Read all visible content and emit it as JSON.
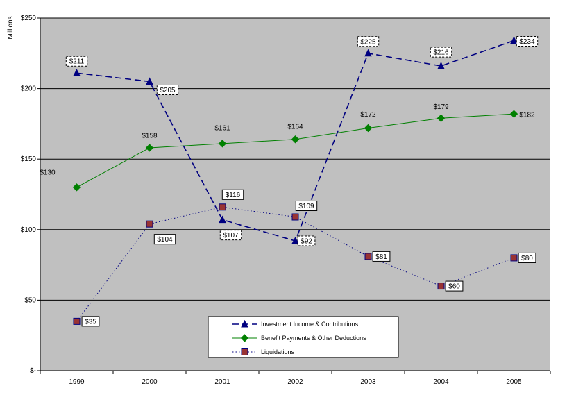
{
  "chart_data": {
    "type": "line",
    "ylabel": "Millions",
    "ylim": [
      0,
      250
    ],
    "yticks": [
      {
        "value": 0,
        "label": "$-"
      },
      {
        "value": 50,
        "label": "$50"
      },
      {
        "value": 100,
        "label": "$100"
      },
      {
        "value": 150,
        "label": "$150"
      },
      {
        "value": 200,
        "label": "$200"
      },
      {
        "value": 250,
        "label": "$250"
      }
    ],
    "categories": [
      "1999",
      "2000",
      "2001",
      "2002",
      "2003",
      "2004",
      "2005"
    ],
    "grid": true,
    "legend_position": "bottom-center",
    "series": [
      {
        "name": "Investment Income & Contributions",
        "values": [
          211,
          205,
          107,
          92,
          225,
          216,
          234
        ],
        "labels": [
          "$211",
          "$205",
          "$107",
          "$92",
          "$225",
          "$216",
          "$234"
        ],
        "color": "#000080",
        "line_style": "dashed",
        "marker": "triangle"
      },
      {
        "name": "Benefit Payments & Other Deductions",
        "values": [
          130,
          158,
          161,
          164,
          172,
          179,
          182
        ],
        "labels": [
          "$130",
          "$158",
          "$161",
          "$164",
          "$172",
          "$179",
          "$182"
        ],
        "color": "#008000",
        "line_style": "solid",
        "marker": "diamond"
      },
      {
        "name": "Liquidations",
        "values": [
          35,
          104,
          116,
          109,
          81,
          60,
          80
        ],
        "labels": [
          "$35",
          "$104",
          "$116",
          "$109",
          "$81",
          "$60",
          "$80"
        ],
        "color": "#000080",
        "marker_fill": "#993333",
        "line_style": "dotted",
        "marker": "square"
      }
    ]
  },
  "colors": {
    "plot_background": "#c0c0c0",
    "gridline": "#000000"
  }
}
